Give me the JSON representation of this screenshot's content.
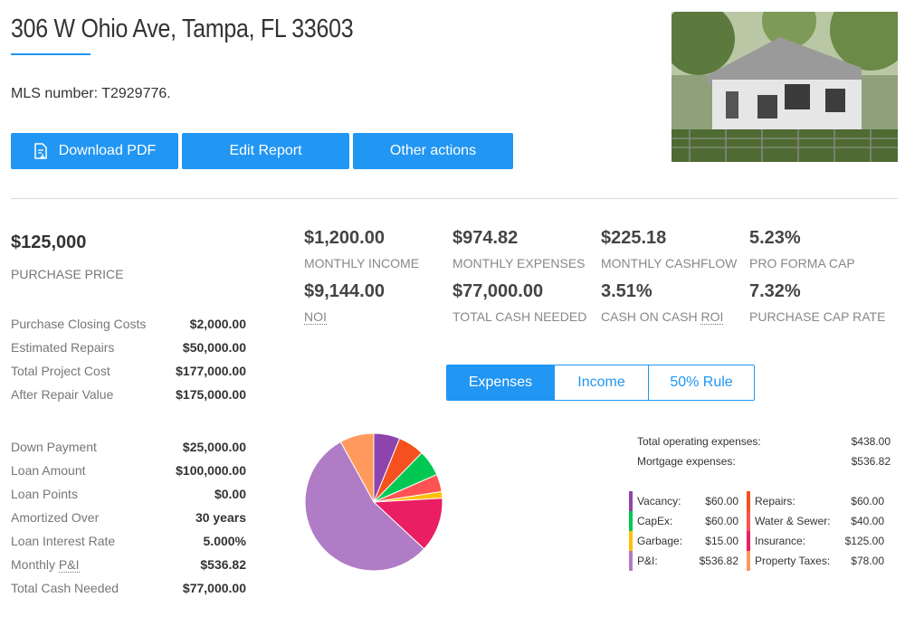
{
  "header": {
    "title": "306 W Ohio Ave, Tampa, FL 33603",
    "mls": "MLS number: T2929776."
  },
  "buttons": {
    "download_pdf": "Download PDF",
    "edit_report": "Edit Report",
    "other_actions": "Other actions"
  },
  "purchase": {
    "price": "$125,000",
    "label": "PURCHASE PRICE"
  },
  "costs": [
    {
      "label": "Purchase Closing Costs",
      "value": "$2,000.00"
    },
    {
      "label": "Estimated Repairs",
      "value": "$50,000.00"
    },
    {
      "label": "Total Project Cost",
      "value": "$177,000.00"
    },
    {
      "label": "After Repair Value",
      "value": "$175,000.00"
    }
  ],
  "financing": [
    {
      "label": "Down Payment",
      "value": "$25,000.00"
    },
    {
      "label": "Loan Amount",
      "value": "$100,000.00"
    },
    {
      "label": "Loan Points",
      "value": "$0.00"
    },
    {
      "label": "Amortized Over",
      "value": "30 years"
    },
    {
      "label": "Loan Interest Rate",
      "value": "5.000%"
    },
    {
      "label_prefix": "Monthly ",
      "label_abbr": "P&I",
      "value": "$536.82"
    },
    {
      "label": "Total Cash Needed",
      "value": "$77,000.00"
    }
  ],
  "metrics": [
    {
      "value": "$1,200.00",
      "label": "MONTHLY INCOME"
    },
    {
      "value": "$974.82",
      "label": "MONTHLY EXPENSES"
    },
    {
      "value": "$225.18",
      "label": "MONTHLY CASHFLOW"
    },
    {
      "value": "5.23%",
      "label": "PRO FORMA CAP"
    },
    {
      "value": "$9,144.00",
      "label": "NOI"
    },
    {
      "value": "$77,000.00",
      "label": "TOTAL CASH NEEDED"
    },
    {
      "value": "3.51%",
      "label_prefix": "CASH ON CASH ",
      "label_abbr": "ROI"
    },
    {
      "value": "7.32%",
      "label": "PURCHASE CAP RATE"
    }
  ],
  "tabs": {
    "expenses": "Expenses",
    "income": "Income",
    "rule": "50% Rule",
    "active": "expenses"
  },
  "totals": [
    {
      "label": "Total operating expenses:",
      "value": "$438.00"
    },
    {
      "label": "Mortgage expenses:",
      "value": "$536.82"
    }
  ],
  "chart_data": {
    "type": "pie",
    "series": [
      {
        "name": "Vacancy:",
        "value": 60.0,
        "display": "$60.00",
        "color": "#8e44ad"
      },
      {
        "name": "Repairs:",
        "value": 60.0,
        "display": "$60.00",
        "color": "#f4511e"
      },
      {
        "name": "CapEx:",
        "value": 60.0,
        "display": "$60.00",
        "color": "#00c853"
      },
      {
        "name": "Water & Sewer:",
        "value": 40.0,
        "display": "$40.00",
        "color": "#ff5252"
      },
      {
        "name": "Garbage:",
        "value": 15.0,
        "display": "$15.00",
        "color": "#ffc107"
      },
      {
        "name": "Insurance:",
        "value": 125.0,
        "display": "$125.00",
        "color": "#e91e63"
      },
      {
        "name": "P&I:",
        "value": 536.82,
        "display": "$536.82",
        "color": "#b07cc6"
      },
      {
        "name": "Property Taxes:",
        "value": 78.0,
        "display": "$78.00",
        "color": "#ff9a5c"
      }
    ]
  }
}
